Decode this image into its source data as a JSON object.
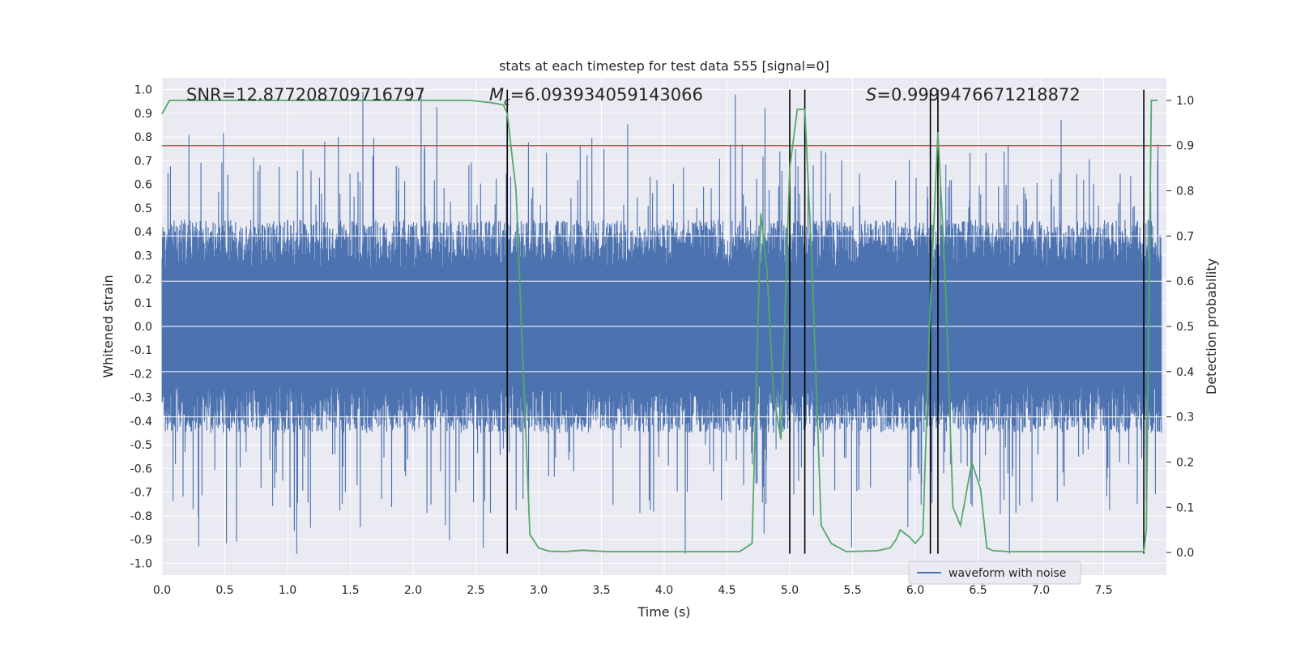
{
  "chart_data": {
    "type": "line",
    "title": "stats at each timestep for test data 555 [signal=0]",
    "xlabel": "Time (s)",
    "ylabel": "Whitened strain",
    "y2label": "Detection probability",
    "xlim": [
      0.0,
      8.0
    ],
    "ylim": [
      -1.05,
      1.05
    ],
    "y2lim": [
      -0.05,
      1.05
    ],
    "x_ticks": [
      "0.0",
      "0.5",
      "1.0",
      "1.5",
      "2.0",
      "2.5",
      "3.0",
      "3.5",
      "4.0",
      "4.5",
      "5.0",
      "5.5",
      "6.0",
      "6.5",
      "7.0",
      "7.5"
    ],
    "x_tick_values": [
      0.0,
      0.5,
      1.0,
      1.5,
      2.0,
      2.5,
      3.0,
      3.5,
      4.0,
      4.5,
      5.0,
      5.5,
      6.0,
      6.5,
      7.0,
      7.5
    ],
    "y_ticks": [
      "1.0",
      "0.9",
      "0.8",
      "0.7",
      "0.6",
      "0.5",
      "0.4",
      "0.3",
      "0.2",
      "0.1",
      "0.0",
      "-0.1",
      "-0.2",
      "-0.3",
      "-0.4",
      "-0.5",
      "-0.6",
      "-0.7",
      "-0.8",
      "-0.9",
      "-1.0"
    ],
    "y_tick_values": [
      1.0,
      0.9,
      0.8,
      0.7,
      0.6,
      0.5,
      0.4,
      0.3,
      0.2,
      0.1,
      0.0,
      -0.1,
      -0.2,
      -0.3,
      -0.4,
      -0.5,
      -0.6,
      -0.7,
      -0.8,
      -0.9,
      -1.0
    ],
    "y2_ticks": [
      "1.0",
      "0.9",
      "0.8",
      "0.7",
      "0.6",
      "0.5",
      "0.4",
      "0.3",
      "0.2",
      "0.1",
      "0.0"
    ],
    "y2_tick_values": [
      1.0,
      0.9,
      0.8,
      0.7,
      0.6,
      0.5,
      0.4,
      0.3,
      0.2,
      0.1,
      0.0
    ],
    "threshold": {
      "value": 0.9,
      "axis": "y2",
      "color": "#c44e52"
    },
    "annotations": {
      "snr": "SNR=12.877208709716797",
      "mc_symbol": "M",
      "mc_sub": "c",
      "mc_value": "=6.093934059143066",
      "s_symbol": "S",
      "s_value": "=0.9999476671218872"
    },
    "vertical_markers": [
      2.75,
      5.0,
      5.12,
      6.12,
      6.18,
      7.82
    ],
    "series": [
      {
        "name": "waveform with noise",
        "axis": "y",
        "color": "#4c72b0",
        "kind": "noise",
        "t_end": 7.96,
        "typical_extent": 0.45,
        "max_peak": 1.0,
        "min_peak": -0.96
      },
      {
        "name": "Detection probability",
        "axis": "y2",
        "color": "#55a868",
        "x": [
          0.0,
          0.06,
          2.45,
          2.62,
          2.72,
          2.75,
          2.82,
          2.93,
          3.0,
          3.08,
          3.2,
          3.35,
          3.55,
          3.8,
          4.1,
          4.4,
          4.6,
          4.7,
          4.77,
          4.82,
          4.87,
          4.93,
          5.0,
          5.06,
          5.12,
          5.18,
          5.25,
          5.33,
          5.45,
          5.7,
          5.8,
          5.85,
          5.88,
          5.95,
          6.0,
          6.06,
          6.12,
          6.18,
          6.24,
          6.3,
          6.36,
          6.45,
          6.52,
          6.57,
          6.62,
          6.75,
          7.0,
          7.5,
          7.82,
          7.84,
          7.88,
          7.93
        ],
        "y": [
          0.97,
          1.0,
          1.0,
          0.995,
          0.99,
          0.97,
          0.8,
          0.04,
          0.01,
          0.003,
          0.002,
          0.005,
          0.002,
          0.002,
          0.002,
          0.002,
          0.002,
          0.02,
          0.75,
          0.62,
          0.35,
          0.25,
          0.85,
          0.98,
          0.98,
          0.62,
          0.06,
          0.02,
          0.002,
          0.004,
          0.01,
          0.03,
          0.05,
          0.035,
          0.02,
          0.04,
          0.55,
          0.93,
          0.6,
          0.1,
          0.06,
          0.2,
          0.14,
          0.01,
          0.004,
          0.002,
          0.002,
          0.002,
          0.002,
          0.05,
          1.0,
          1.0
        ]
      }
    ],
    "legend": {
      "position": "bottom-right",
      "entries": [
        "waveform with noise"
      ]
    }
  }
}
